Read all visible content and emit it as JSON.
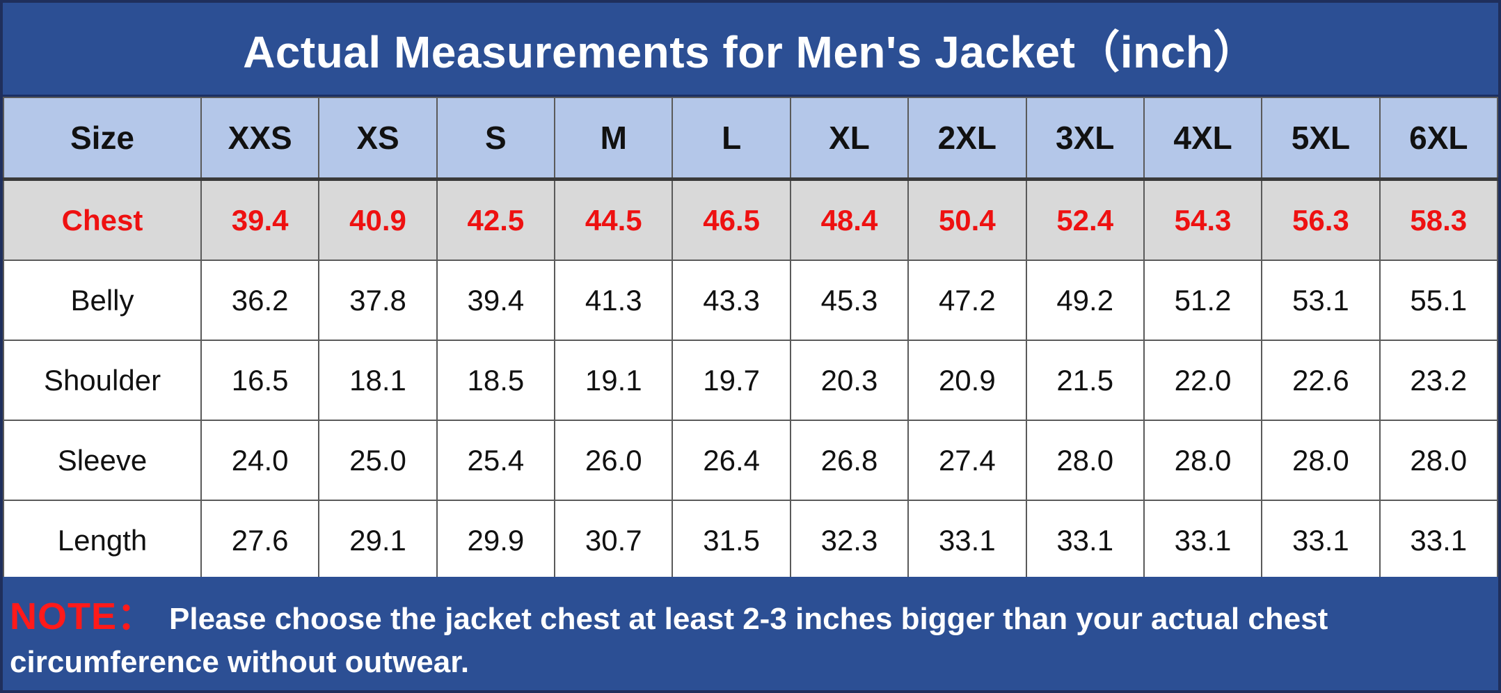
{
  "title": "Actual Measurements for Men's Jacket（inch）",
  "table": {
    "header_label": "Size",
    "sizes": [
      "XXS",
      "XS",
      "S",
      "M",
      "L",
      "XL",
      "2XL",
      "3XL",
      "4XL",
      "5XL",
      "6XL"
    ],
    "rows": [
      {
        "label": "Chest",
        "values": [
          "39.4",
          "40.9",
          "42.5",
          "44.5",
          "46.5",
          "48.4",
          "50.4",
          "52.4",
          "54.3",
          "56.3",
          "58.3"
        ]
      },
      {
        "label": "Belly",
        "values": [
          "36.2",
          "37.8",
          "39.4",
          "41.3",
          "43.3",
          "45.3",
          "47.2",
          "49.2",
          "51.2",
          "53.1",
          "55.1"
        ]
      },
      {
        "label": "Shoulder",
        "values": [
          "16.5",
          "18.1",
          "18.5",
          "19.1",
          "19.7",
          "20.3",
          "20.9",
          "21.5",
          "22.0",
          "22.6",
          "23.2"
        ]
      },
      {
        "label": "Sleeve",
        "values": [
          "24.0",
          "25.0",
          "25.4",
          "26.0",
          "26.4",
          "26.8",
          "27.4",
          "28.0",
          "28.0",
          "28.0",
          "28.0"
        ]
      },
      {
        "label": "Length",
        "values": [
          "27.6",
          "29.1",
          "29.9",
          "30.7",
          "31.5",
          "32.3",
          "33.1",
          "33.1",
          "33.1",
          "33.1",
          "33.1"
        ]
      }
    ]
  },
  "note": {
    "label": "NOTE：",
    "text": "Please choose the jacket chest at least 2-3 inches bigger than your actual chest circumference without outwear."
  },
  "colors": {
    "title_bg": "#2c4f94",
    "header_bg": "#b4c7e9",
    "chest_row_bg": "#d9d9d9",
    "chest_text": "#ee1111",
    "note_label": "#ff1a1a"
  }
}
